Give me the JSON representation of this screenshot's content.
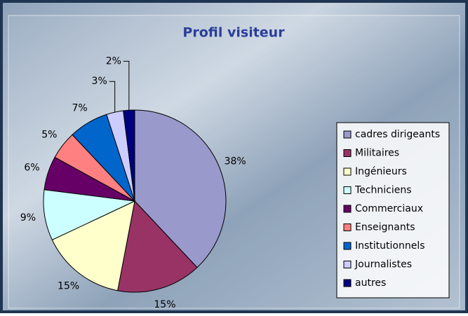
{
  "chart_data": {
    "type": "pie",
    "title": "Profil visiteur",
    "categories": [
      "cadres dirigeants",
      "Militaires",
      "Ingénieurs",
      "Techniciens",
      "Commerciaux",
      "Enseignants",
      "Institutionnels",
      "Journalistes",
      "autres"
    ],
    "values": [
      38,
      15,
      15,
      9,
      6,
      5,
      7,
      3,
      2
    ],
    "value_labels": [
      "38%",
      "15%",
      "15%",
      "9%",
      "6%",
      "5%",
      "7%",
      "3%",
      "2%"
    ],
    "colors": [
      "#9999cc",
      "#993366",
      "#ffffcc",
      "#ccffff",
      "#660066",
      "#ff8080",
      "#0066cc",
      "#ccccff",
      "#000080"
    ],
    "legend": "right"
  }
}
